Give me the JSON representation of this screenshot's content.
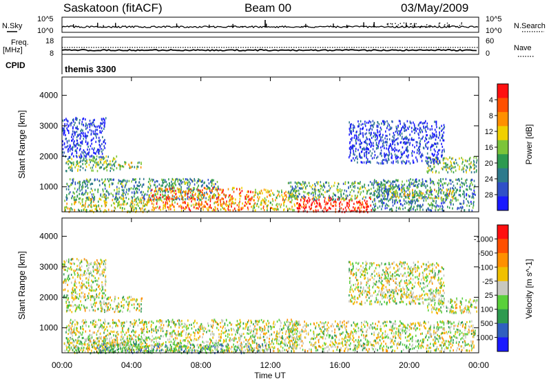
{
  "header": {
    "title": "Saskatoon (fitACF)",
    "beam": "Beam 00",
    "date": "03/May/2009"
  },
  "ribbon": {
    "nsky_label": "N.Sky",
    "nsky_top": "10^5",
    "nsky_bottom": "10^0",
    "nsearch_label": "N.Search",
    "nsearch_top": "10^5",
    "nsearch_bottom": "10^0",
    "freq_label_1": "Freq.",
    "freq_label_2": "[MHz]",
    "freq_top": "18",
    "freq_bottom": "8",
    "nave_label": "Nave",
    "nave_top": "60",
    "nave_bottom": "0",
    "cpid_label": "CPID",
    "cpid_value": "themis 3300"
  },
  "chart_data": [
    {
      "type": "heatmap",
      "name": "power",
      "ylabel": "Slant Range [km]",
      "ylim": [
        180,
        4600
      ],
      "yticks": [
        1000,
        2000,
        3000,
        4000
      ],
      "xlim": [
        0,
        24
      ],
      "xticks": [
        "00:00",
        "04:00",
        "08:00",
        "12:00",
        "16:00",
        "20:00",
        "00:00"
      ],
      "xlabel": "Time UT",
      "colorbar": {
        "label": "Power [dB]",
        "ticks": [
          "4",
          "8",
          "12",
          "16",
          "20",
          "24",
          "28"
        ],
        "colors": [
          "#1a1aff",
          "#3050c8",
          "#2e7a8c",
          "#2e9a50",
          "#7cc43a",
          "#f0d000",
          "#ff9000",
          "#ff5000",
          "#ff1010"
        ]
      },
      "regions": [
        {
          "t0": 0.1,
          "t1": 5.0,
          "r0": 200,
          "r1": 700,
          "level": 0.55
        },
        {
          "t0": 0.2,
          "t1": 3.2,
          "r0": 1550,
          "r1": 2050,
          "level": 0.45
        },
        {
          "t0": 3.2,
          "t1": 4.6,
          "r0": 1600,
          "r1": 1850,
          "level": 0.5
        },
        {
          "t0": 0.2,
          "t1": 9.0,
          "r0": 600,
          "r1": 1300,
          "level": 0.35
        },
        {
          "t0": 5.0,
          "t1": 11.0,
          "r0": 250,
          "r1": 1000,
          "level": 0.75
        },
        {
          "t0": 11.0,
          "t1": 13.5,
          "r0": 250,
          "r1": 950,
          "level": 0.6
        },
        {
          "t0": 13.5,
          "t1": 17.8,
          "r0": 200,
          "r1": 700,
          "level": 0.95
        },
        {
          "t0": 13.0,
          "t1": 19.0,
          "r0": 600,
          "r1": 1200,
          "level": 0.4
        },
        {
          "t0": 17.8,
          "t1": 23.8,
          "r0": 250,
          "r1": 1300,
          "level": 0.3
        },
        {
          "t0": 19.0,
          "t1": 22.5,
          "r0": 650,
          "r1": 950,
          "level": 0.55
        },
        {
          "t0": 21.0,
          "t1": 23.9,
          "r0": 1500,
          "r1": 2000,
          "level": 0.45
        },
        {
          "t0": 16.5,
          "t1": 22.0,
          "r0": 1800,
          "r1": 3200,
          "level": 0.1
        },
        {
          "t0": 0.0,
          "t1": 2.5,
          "r0": 2000,
          "r1": 3300,
          "level": 0.1
        }
      ]
    },
    {
      "type": "heatmap",
      "name": "velocity",
      "ylabel": "Slant Range [km]",
      "ylim": [
        180,
        4600
      ],
      "yticks": [
        1000,
        2000,
        3000,
        4000
      ],
      "xlim": [
        0,
        24
      ],
      "xticks": [
        "00:00",
        "04:00",
        "08:00",
        "12:00",
        "16:00",
        "20:00",
        "00:00"
      ],
      "xlabel": "Time UT",
      "colorbar": {
        "label": "Velocity [m s^-1]",
        "ticks": [
          "1000",
          "500",
          "100",
          "25",
          "-25",
          "-100",
          "-500",
          "-1000"
        ],
        "colors": [
          "#1a1aff",
          "#3060c0",
          "#2e9a50",
          "#5ad03a",
          "#c8c8c0",
          "#f0c000",
          "#ff9000",
          "#ff5000",
          "#ff1010"
        ]
      },
      "regions": [
        {
          "t0": 0.1,
          "t1": 5.0,
          "r0": 200,
          "r1": 700,
          "level": 0.45
        },
        {
          "t0": 0.2,
          "t1": 4.6,
          "r0": 1550,
          "r1": 2050,
          "level": 0.5
        },
        {
          "t0": 0.2,
          "t1": 13.5,
          "r0": 250,
          "r1": 1300,
          "level": 0.5
        },
        {
          "t0": 2.0,
          "t1": 12.0,
          "r0": 200,
          "r1": 500,
          "level": 0.35
        },
        {
          "t0": 13.0,
          "t1": 23.8,
          "r0": 250,
          "r1": 1250,
          "level": 0.5
        },
        {
          "t0": 21.0,
          "t1": 23.9,
          "r0": 1500,
          "r1": 2000,
          "level": 0.5
        },
        {
          "t0": 16.5,
          "t1": 22.0,
          "r0": 1800,
          "r1": 3200,
          "level": 0.5
        },
        {
          "t0": 0.0,
          "t1": 2.5,
          "r0": 2000,
          "r1": 3300,
          "level": 0.5
        }
      ]
    }
  ]
}
